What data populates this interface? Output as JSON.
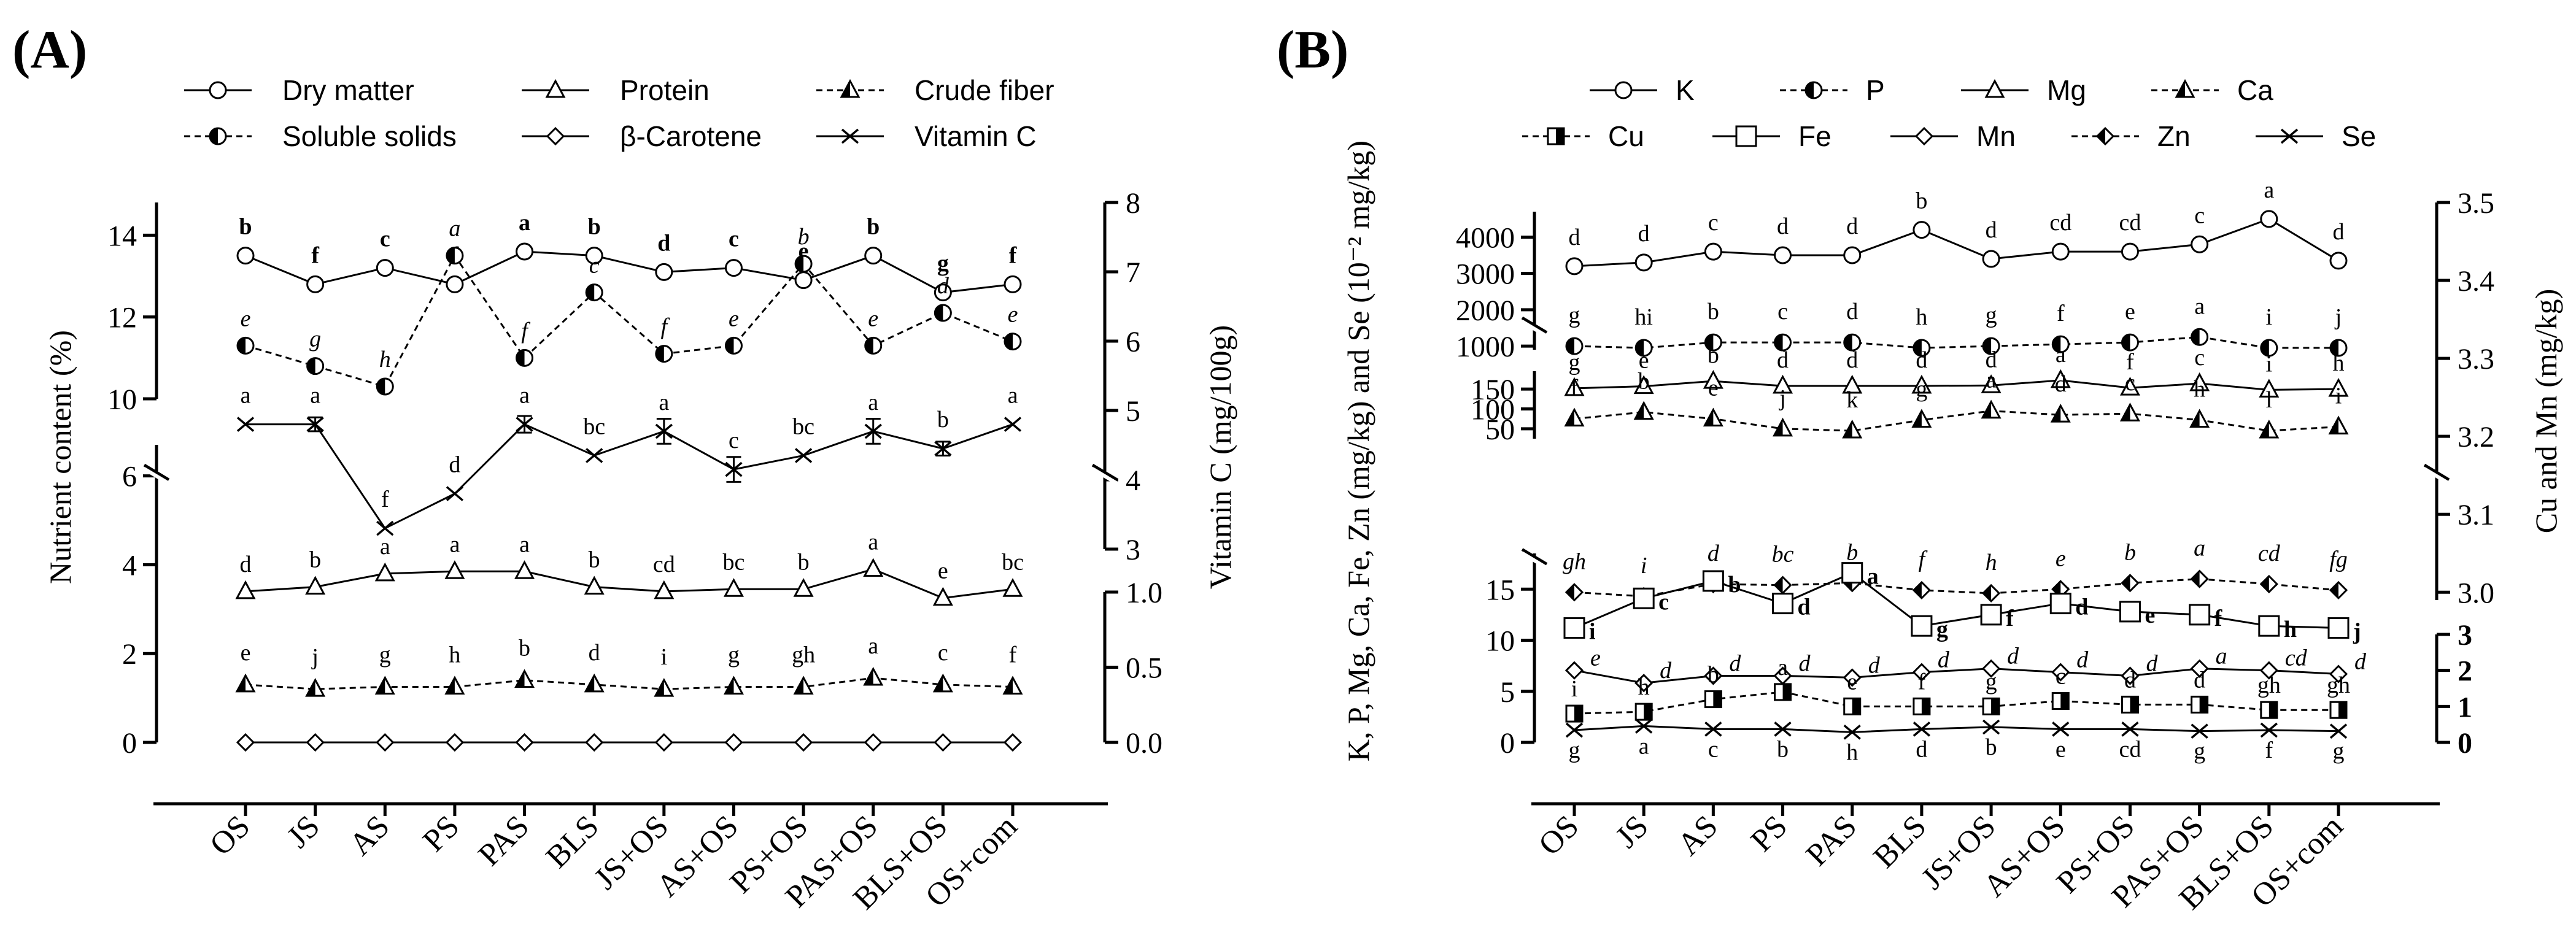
{
  "chart_data": [
    {
      "panel": "(A)",
      "type": "line",
      "categories": [
        "OS",
        "JS",
        "AS",
        "PS",
        "PAS",
        "BLS",
        "JS+OS",
        "AS+OS",
        "PS+OS",
        "PAS+OS",
        "BLS+OS",
        "OS+com"
      ],
      "ylabel_left": "Nutrient content (%)",
      "ylabel_right": "Vitamin C (mg/100g)",
      "left_axis_segments": [
        {
          "range": [
            10,
            14.8
          ],
          "ticks": [
            10,
            12,
            14
          ]
        },
        {
          "range": [
            0,
            6.7
          ],
          "ticks": [
            0,
            2,
            4,
            6
          ]
        }
      ],
      "right_axis_segments": [
        {
          "range": [
            3,
            8
          ],
          "ticks": [
            3,
            4,
            5,
            6,
            7,
            8
          ]
        },
        {
          "range": [
            0,
            1
          ],
          "ticks": [
            0.0,
            0.5,
            1.0
          ]
        }
      ],
      "legend": [
        "Dry matter",
        "Protein",
        "Crude fiber",
        "Soluble solids",
        "β-Carotene",
        "Vitamin C"
      ],
      "series": [
        {
          "name": "Dry matter",
          "axis": "left",
          "marker": "circle",
          "dashed": false,
          "label_style": "bold",
          "values": [
            13.5,
            12.8,
            13.2,
            12.8,
            13.6,
            13.5,
            13.1,
            13.2,
            12.9,
            13.5,
            12.6,
            12.8
          ],
          "labels": [
            "b",
            "f",
            "c",
            "f",
            "a",
            "b",
            "d",
            "c",
            "e",
            "b",
            "g",
            "f"
          ]
        },
        {
          "name": "Soluble solids",
          "axis": "left",
          "marker": "half-circle",
          "dashed": true,
          "label_style": "italic",
          "values": [
            11.3,
            10.8,
            10.3,
            13.5,
            11.0,
            12.6,
            11.1,
            11.3,
            13.3,
            11.3,
            12.1,
            11.4
          ],
          "labels": [
            "e",
            "g",
            "h",
            "a",
            "f",
            "c",
            "f",
            "e",
            "b",
            "e",
            "d",
            "e"
          ]
        },
        {
          "name": "Protein",
          "axis": "left",
          "marker": "triangle",
          "dashed": false,
          "label_style": "normal",
          "values": [
            3.4,
            3.5,
            3.8,
            3.85,
            3.85,
            3.5,
            3.4,
            3.45,
            3.45,
            3.9,
            3.25,
            3.45
          ],
          "labels": [
            "d",
            "b",
            "a",
            "a",
            "a",
            "b",
            "cd",
            "bc",
            "b",
            "a",
            "e",
            "bc"
          ]
        },
        {
          "name": "Crude fiber",
          "axis": "left",
          "marker": "half-triangle",
          "dashed": true,
          "label_style": "normal",
          "values": [
            1.3,
            1.2,
            1.25,
            1.25,
            1.4,
            1.3,
            1.2,
            1.25,
            1.25,
            1.45,
            1.3,
            1.25
          ],
          "labels": [
            "e",
            "j",
            "g",
            "h",
            "b",
            "d",
            "i",
            "g",
            "gh",
            "a",
            "c",
            "f"
          ]
        },
        {
          "name": "β-Carotene",
          "axis": "left",
          "marker": "diamond",
          "dashed": false,
          "label_style": "none",
          "values": [
            0,
            0,
            0,
            0,
            0,
            0,
            0,
            0,
            0,
            0,
            0,
            0
          ],
          "labels": []
        },
        {
          "name": "Vitamin C",
          "axis": "right",
          "marker": "cross",
          "dashed": false,
          "label_style": "normal",
          "values": [
            4.8,
            4.8,
            3.3,
            3.8,
            4.8,
            4.35,
            4.7,
            4.15,
            4.35,
            4.7,
            4.45,
            4.8
          ],
          "errors": [
            0,
            0.1,
            0,
            0,
            0.12,
            0,
            0.18,
            0.18,
            0,
            0.18,
            0.1,
            0
          ],
          "labels": [
            "a",
            "a",
            "f",
            "d",
            "a",
            "bc",
            "a",
            "c",
            "bc",
            "a",
            "b",
            "a"
          ]
        }
      ]
    },
    {
      "panel": "(B)",
      "type": "line",
      "categories": [
        "OS",
        "JS",
        "AS",
        "PS",
        "PAS",
        "BLS",
        "JS+OS",
        "AS+OS",
        "PS+OS",
        "PAS+OS",
        "BLS+OS",
        "OS+com"
      ],
      "ylabel_left": "K, P, Mg, Ca, Fe, Zn (mg/kg) and Se (10⁻² mg/kg)",
      "ylabel_right": "Cu and Mn (mg/kg)",
      "left_axis_segments": [
        {
          "range": [
            900,
            4700
          ],
          "ticks": [
            1000,
            2000,
            3000,
            4000
          ]
        },
        {
          "range": [
            25,
            195
          ],
          "ticks": [
            50,
            100,
            150
          ]
        },
        {
          "range": [
            0,
            18.5
          ],
          "ticks": [
            0,
            5,
            10,
            15
          ]
        }
      ],
      "right_axis_segments": [
        {
          "range": [
            2.99,
            3.5
          ],
          "ticks": [
            3.0,
            3.1,
            3.2,
            3.3,
            3.4,
            3.5
          ]
        },
        {
          "range": [
            0,
            3
          ],
          "ticks": [
            0,
            1,
            2,
            3
          ]
        }
      ],
      "legend": [
        "K",
        "P",
        "Mg",
        "Ca",
        "Cu",
        "Fe",
        "Mn",
        "Zn",
        "Se"
      ],
      "series": [
        {
          "name": "K",
          "axis": "left",
          "marker": "circle",
          "dashed": false,
          "label_style": "normal",
          "values": [
            3200,
            3300,
            3600,
            3500,
            3500,
            4200,
            3400,
            3600,
            3600,
            3800,
            4500,
            3350
          ],
          "labels": [
            "d",
            "d",
            "c",
            "d",
            "d",
            "b",
            "d",
            "cd",
            "cd",
            "c",
            "a",
            "d"
          ]
        },
        {
          "name": "P",
          "axis": "left",
          "marker": "half-circle-left",
          "dashed": true,
          "label_style": "normal",
          "values": [
            1000,
            950,
            1100,
            1100,
            1100,
            950,
            1000,
            1050,
            1100,
            1250,
            950,
            950
          ],
          "labels": [
            "g",
            "hi",
            "b",
            "c",
            "d",
            "h",
            "g",
            "f",
            "e",
            "a",
            "i",
            "j"
          ]
        },
        {
          "name": "Mg",
          "axis": "left",
          "marker": "triangle",
          "dashed": false,
          "label_style": "normal",
          "values": [
            152,
            157,
            170,
            158,
            158,
            158,
            159,
            172,
            153,
            164,
            148,
            150
          ],
          "labels": [
            "g",
            "e",
            "b",
            "d",
            "d",
            "d",
            "d",
            "a",
            "f",
            "c",
            "i",
            "h"
          ]
        },
        {
          "name": "Ca",
          "axis": "left",
          "marker": "half-triangle",
          "dashed": true,
          "label_style": "normal",
          "values": [
            75,
            92,
            75,
            50,
            45,
            72,
            95,
            85,
            88,
            72,
            45,
            55
          ],
          "labels": [
            "f",
            "b",
            "e",
            "j",
            "k",
            "g",
            "a",
            "d",
            "c",
            "h",
            "l",
            "i"
          ]
        },
        {
          "name": "Zn",
          "axis": "left",
          "marker": "half-diamond",
          "dashed": true,
          "label_style": "italic",
          "values": [
            14.7,
            14.3,
            15.5,
            15.4,
            15.6,
            14.9,
            14.6,
            15.0,
            15.6,
            16.0,
            15.5,
            14.9
          ],
          "labels": [
            "gh",
            "i",
            "d",
            "bc",
            "b",
            "f",
            "h",
            "e",
            "b",
            "a",
            "cd",
            "fg"
          ]
        },
        {
          "name": "Fe",
          "axis": "left",
          "marker": "square",
          "dashed": false,
          "label_style": "bold",
          "values": [
            11.2,
            14.1,
            15.8,
            13.6,
            16.6,
            11.4,
            12.5,
            13.6,
            12.8,
            12.5,
            11.4,
            11.2
          ],
          "labels": [
            "i",
            "c",
            "b",
            "d",
            "a",
            "g",
            "f",
            "d",
            "e",
            "f",
            "h",
            "j"
          ]
        },
        {
          "name": "Mn",
          "axis": "right",
          "marker": "diamond",
          "dashed": false,
          "label_style": "italic",
          "values": [
            2.0,
            1.65,
            1.85,
            1.85,
            1.8,
            1.95,
            2.05,
            1.95,
            1.85,
            2.05,
            2.0,
            1.9
          ],
          "labels": [
            "e",
            "d",
            "d",
            "d",
            "d",
            "d",
            "d",
            "d",
            "d",
            "a",
            "cd",
            "d"
          ]
        },
        {
          "name": "Cu",
          "axis": "right",
          "marker": "half-square",
          "dashed": true,
          "label_style": "normal",
          "values": [
            0.8,
            0.85,
            1.2,
            1.4,
            1.0,
            1.0,
            1.0,
            1.15,
            1.05,
            1.05,
            0.9,
            0.9
          ],
          "labels": [
            "i",
            "h",
            "b",
            "a",
            "e",
            "f",
            "g",
            "c",
            "d",
            "d",
            "gh",
            "gh"
          ]
        },
        {
          "name": "Se",
          "axis": "left",
          "marker": "cross",
          "dashed": false,
          "label_style": "normal",
          "values": [
            1.2,
            1.6,
            1.3,
            1.3,
            1.0,
            1.3,
            1.5,
            1.3,
            1.3,
            1.1,
            1.2,
            1.1
          ],
          "labels": [
            "g",
            "a",
            "c",
            "b",
            "h",
            "d",
            "b",
            "e",
            "cd",
            "g",
            "f",
            "g"
          ]
        }
      ]
    }
  ]
}
